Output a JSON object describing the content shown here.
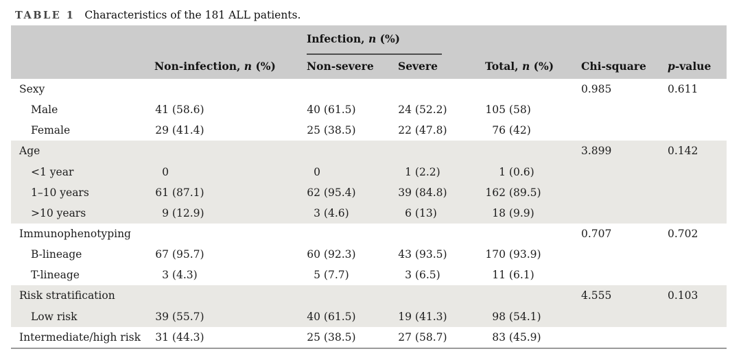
{
  "title": {
    "tag": "TABLE 1",
    "text": "Characteristics of the 181 ALL patients."
  },
  "colors": {
    "header_bg": "#cccccc",
    "band_bg": "#e9e8e4",
    "bottom_rule": "#9a9a9a",
    "group_underline": "#4d4d4d",
    "text": "#1c1c1c"
  },
  "table": {
    "headers": {
      "infection_group": {
        "pre": "Infection, ",
        "it": "n",
        "post": " (%)"
      },
      "noninfection": {
        "pre": "Non-infection, ",
        "it": "n",
        "post": " (%)"
      },
      "nonsevere": {
        "pre": "Non-severe"
      },
      "severe": {
        "pre": "Severe"
      },
      "total": {
        "pre": "Total, ",
        "it": "n",
        "post": " (%)"
      },
      "chisquare": {
        "pre": "Chi-square"
      },
      "pvalue": {
        "it": "p",
        "post": "-value"
      }
    },
    "rows": [
      {
        "label": "Sexy",
        "indent": false,
        "shaded": false,
        "values": [
          "",
          "",
          "",
          ""
        ],
        "chi": "0.985",
        "p": "0.611"
      },
      {
        "label": "Male",
        "indent": true,
        "shaded": false,
        "values": [
          "41 (58.6)",
          "40 (61.5)",
          "24 (52.2)",
          "105 (58)"
        ],
        "chi": "",
        "p": ""
      },
      {
        "label": "Female",
        "indent": true,
        "shaded": false,
        "values": [
          "29 (41.4)",
          "25 (38.5)",
          "22 (47.8)",
          "76 (42)"
        ],
        "chi": "",
        "p": ""
      },
      {
        "label": "Age",
        "indent": false,
        "shaded": true,
        "values": [
          "",
          "",
          "",
          ""
        ],
        "chi": "3.899",
        "p": "0.142"
      },
      {
        "label": "<1 year",
        "indent": true,
        "shaded": true,
        "values": [
          "0",
          "0",
          "1 (2.2)",
          "1 (0.6)"
        ],
        "chi": "",
        "p": ""
      },
      {
        "label": "1–10 years",
        "indent": true,
        "shaded": true,
        "values": [
          "61 (87.1)",
          "62 (95.4)",
          "39 (84.8)",
          "162 (89.5)"
        ],
        "chi": "",
        "p": ""
      },
      {
        "label": ">10 years",
        "indent": true,
        "shaded": true,
        "values": [
          "9 (12.9)",
          "3 (4.6)",
          "6 (13)",
          "18 (9.9)"
        ],
        "chi": "",
        "p": ""
      },
      {
        "label": "Immunophenotyping",
        "indent": false,
        "shaded": false,
        "values": [
          "",
          "",
          "",
          ""
        ],
        "chi": "0.707",
        "p": "0.702"
      },
      {
        "label": "B-lineage",
        "indent": true,
        "shaded": false,
        "values": [
          "67 (95.7)",
          "60 (92.3)",
          "43 (93.5)",
          "170 (93.9)"
        ],
        "chi": "",
        "p": ""
      },
      {
        "label": "T-lineage",
        "indent": true,
        "shaded": false,
        "values": [
          "3 (4.3)",
          "5 (7.7)",
          "3 (6.5)",
          "11 (6.1)"
        ],
        "chi": "",
        "p": ""
      },
      {
        "label": "Risk stratification",
        "indent": false,
        "shaded": true,
        "values": [
          "",
          "",
          "",
          ""
        ],
        "chi": "4.555",
        "p": "0.103"
      },
      {
        "label": "Low risk",
        "indent": true,
        "shaded": true,
        "values": [
          "39 (55.7)",
          "40 (61.5)",
          "19 (41.3)",
          "98 (54.1)"
        ],
        "chi": "",
        "p": ""
      },
      {
        "label": "Intermediate/high risk",
        "indent": false,
        "shaded": false,
        "values": [
          "31 (44.3)",
          "25 (38.5)",
          "27 (58.7)",
          "83 (45.9)"
        ],
        "chi": "",
        "p": ""
      }
    ]
  }
}
